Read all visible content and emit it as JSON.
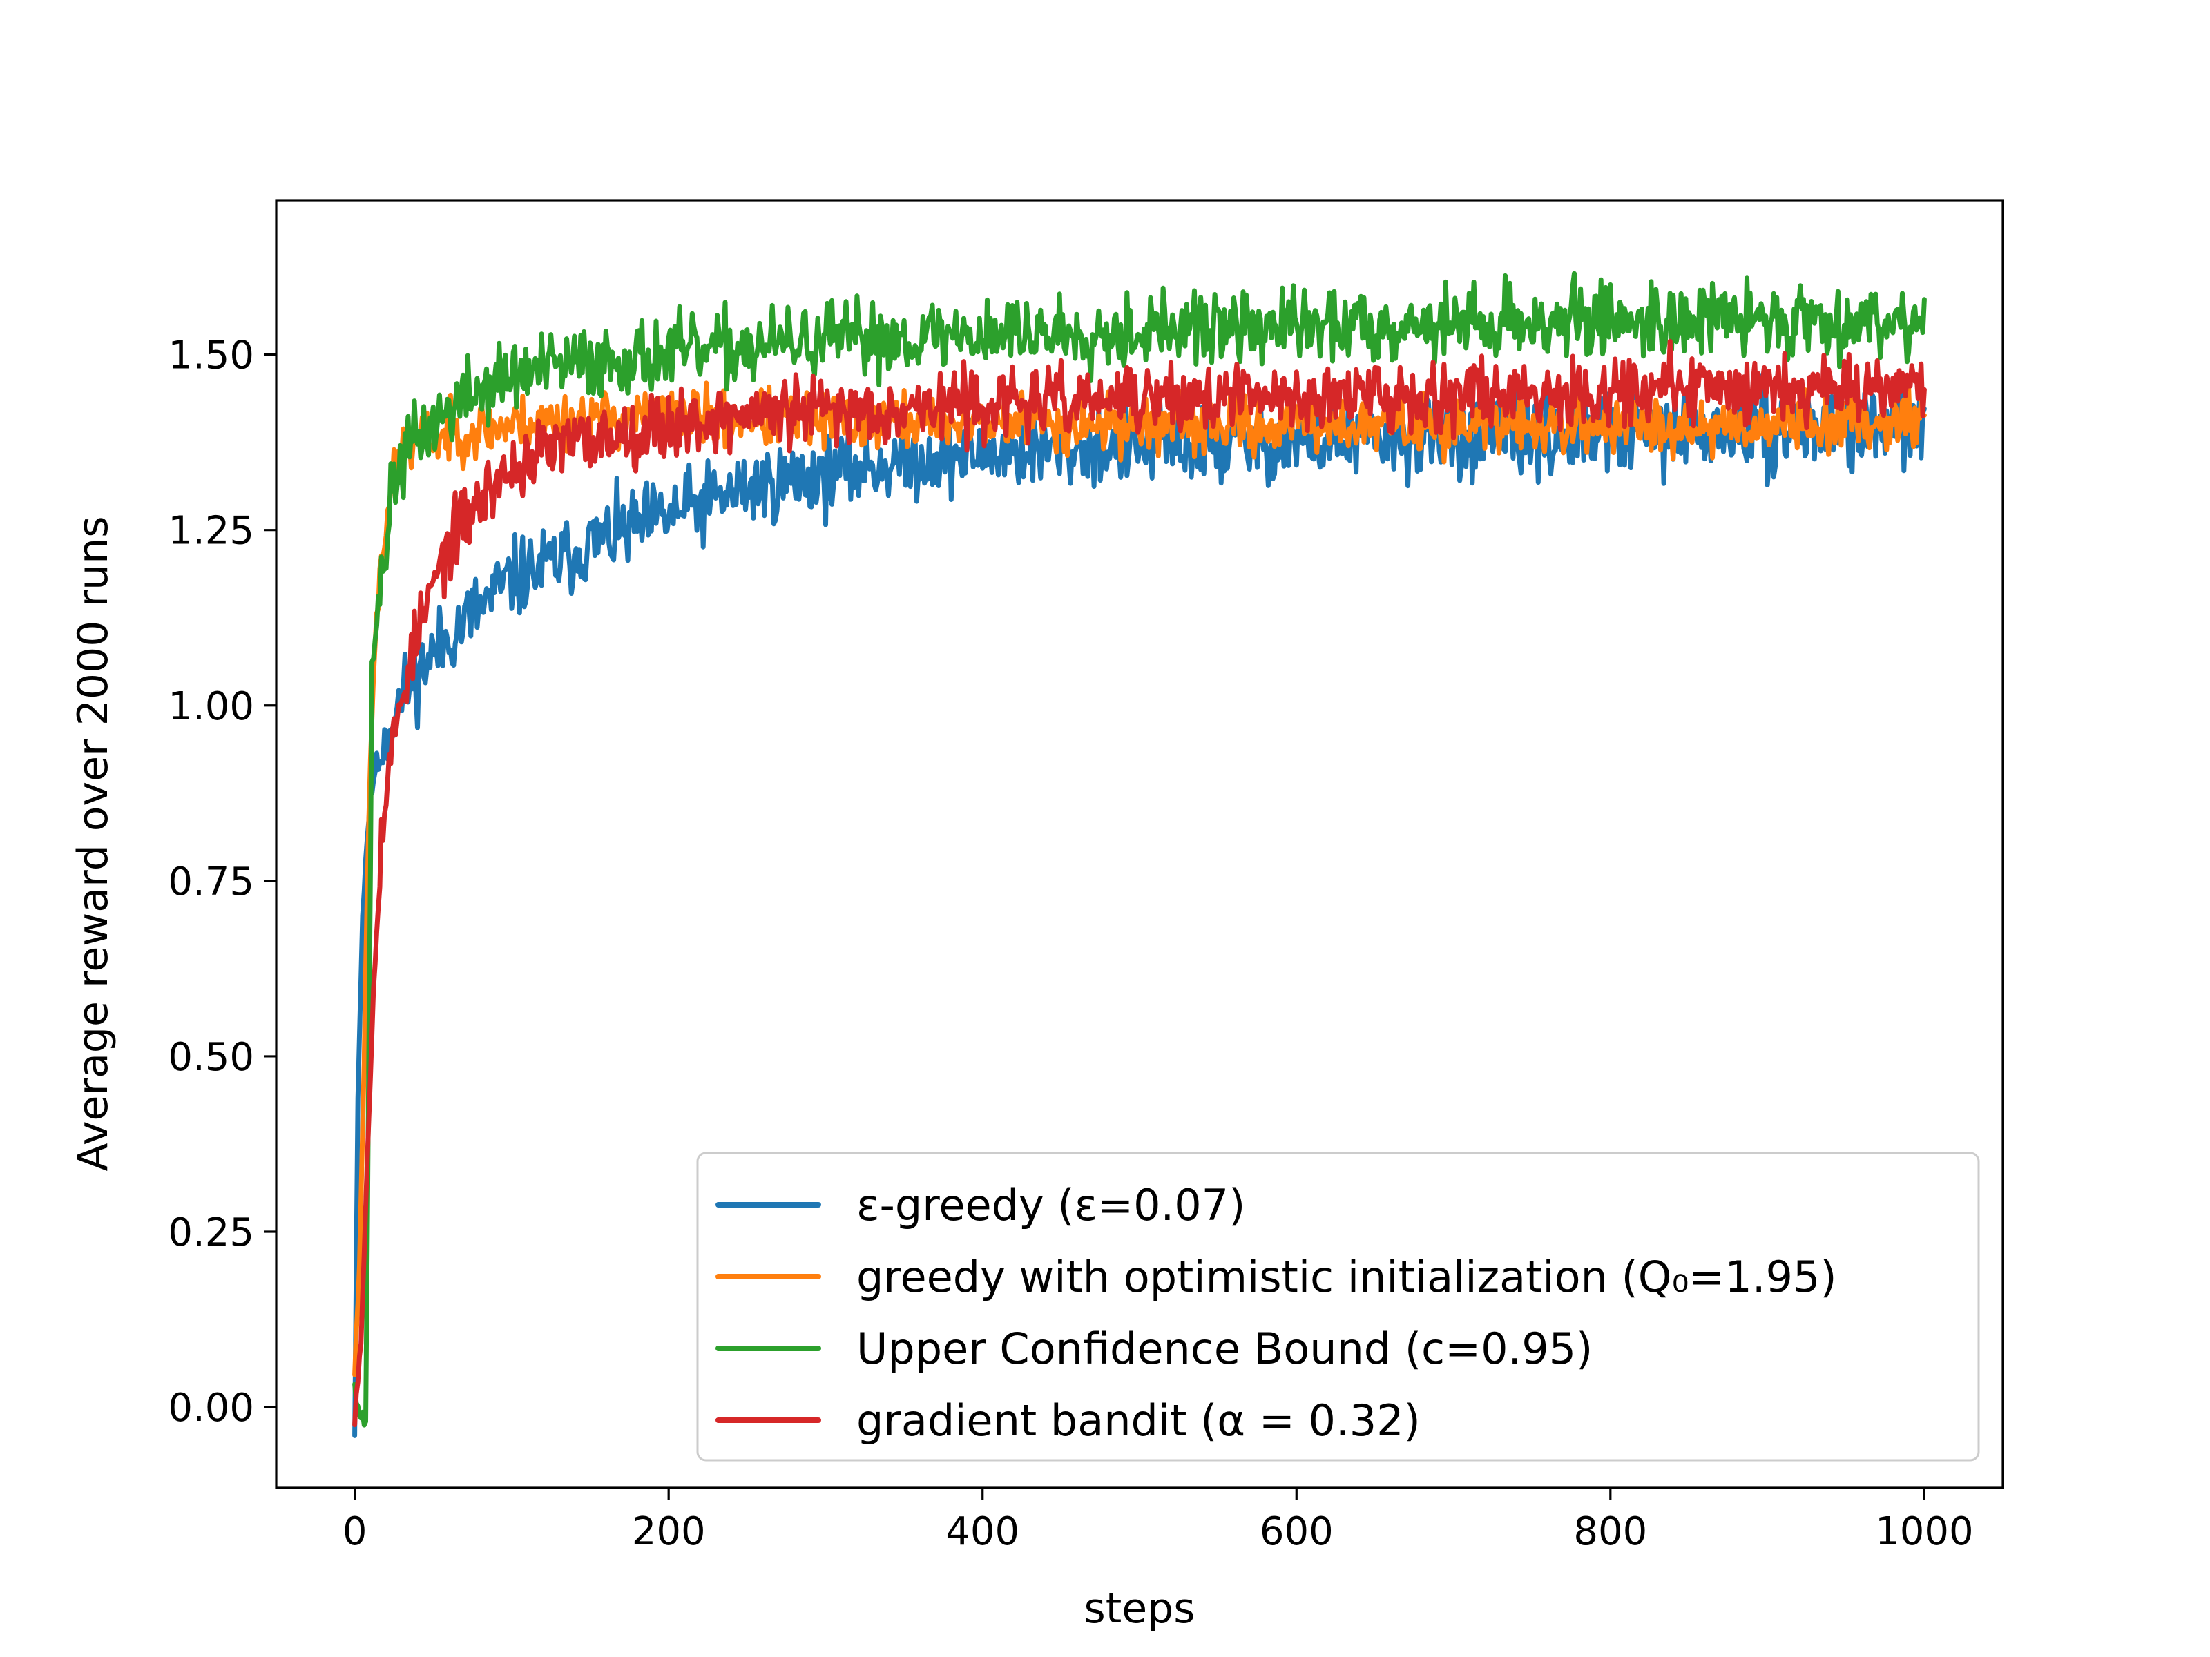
{
  "chart_data": {
    "type": "line",
    "title": "",
    "xlabel": "steps",
    "ylabel": "Average reward over 2000 runs",
    "xlim": [
      -50,
      1050
    ],
    "ylim": [
      -0.115,
      1.72
    ],
    "xticks": [
      0,
      200,
      400,
      600,
      800,
      1000
    ],
    "xtick_labels": [
      "0",
      "200",
      "400",
      "600",
      "800",
      "1000"
    ],
    "yticks": [
      0.0,
      0.25,
      0.5,
      0.75,
      1.0,
      1.25,
      1.5
    ],
    "ytick_labels": [
      "0.00",
      "0.25",
      "0.50",
      "0.75",
      "1.00",
      "1.25",
      "1.50"
    ],
    "grid": false,
    "legend_position": "lower-right",
    "series": [
      {
        "name": "ε-greedy (ε=0.07)",
        "color": "#1f77b4",
        "points": [
          [
            0,
            -0.03
          ],
          [
            2,
            0.45
          ],
          [
            5,
            0.7
          ],
          [
            8,
            0.82
          ],
          [
            12,
            0.9
          ],
          [
            18,
            0.95
          ],
          [
            25,
            0.99
          ],
          [
            35,
            1.03
          ],
          [
            45,
            1.06
          ],
          [
            60,
            1.1
          ],
          [
            80,
            1.14
          ],
          [
            100,
            1.18
          ],
          [
            125,
            1.2
          ],
          [
            150,
            1.23
          ],
          [
            175,
            1.25
          ],
          [
            200,
            1.27
          ],
          [
            225,
            1.29
          ],
          [
            250,
            1.31
          ],
          [
            275,
            1.32
          ],
          [
            300,
            1.33
          ],
          [
            325,
            1.34
          ],
          [
            350,
            1.35
          ],
          [
            375,
            1.355
          ],
          [
            400,
            1.36
          ],
          [
            450,
            1.365
          ],
          [
            500,
            1.37
          ],
          [
            550,
            1.37
          ],
          [
            600,
            1.375
          ],
          [
            650,
            1.38
          ],
          [
            700,
            1.38
          ],
          [
            750,
            1.38
          ],
          [
            800,
            1.385
          ],
          [
            850,
            1.39
          ],
          [
            900,
            1.39
          ],
          [
            950,
            1.395
          ],
          [
            1000,
            1.4
          ]
        ],
        "noise": 0.028,
        "seed": 11
      },
      {
        "name": "greedy with optimistic initialization (Q₀=1.95)",
        "color": "#ff7f0e",
        "points": [
          [
            0,
            0.05
          ],
          [
            3,
            0.2
          ],
          [
            6,
            0.5
          ],
          [
            9,
            0.85
          ],
          [
            12,
            1.05
          ],
          [
            16,
            1.2
          ],
          [
            22,
            1.3
          ],
          [
            30,
            1.36
          ],
          [
            45,
            1.38
          ],
          [
            70,
            1.39
          ],
          [
            100,
            1.4
          ],
          [
            150,
            1.41
          ],
          [
            200,
            1.41
          ],
          [
            250,
            1.41
          ],
          [
            300,
            1.405
          ],
          [
            400,
            1.405
          ],
          [
            500,
            1.4
          ],
          [
            600,
            1.4
          ],
          [
            700,
            1.4
          ],
          [
            800,
            1.4
          ],
          [
            900,
            1.4
          ],
          [
            1000,
            1.41
          ]
        ],
        "noise": 0.02,
        "seed": 23
      },
      {
        "name": "Upper Confidence Bound (c=0.95)",
        "color": "#2ca02c",
        "points": [
          [
            0,
            0.04
          ],
          [
            3,
            -0.01
          ],
          [
            7,
            -0.02
          ],
          [
            9,
            0.5
          ],
          [
            11,
            1.05
          ],
          [
            14,
            1.12
          ],
          [
            18,
            1.2
          ],
          [
            25,
            1.32
          ],
          [
            35,
            1.37
          ],
          [
            50,
            1.4
          ],
          [
            70,
            1.44
          ],
          [
            100,
            1.47
          ],
          [
            150,
            1.49
          ],
          [
            200,
            1.5
          ],
          [
            250,
            1.51
          ],
          [
            300,
            1.52
          ],
          [
            350,
            1.525
          ],
          [
            400,
            1.53
          ],
          [
            500,
            1.535
          ],
          [
            600,
            1.54
          ],
          [
            700,
            1.545
          ],
          [
            800,
            1.55
          ],
          [
            900,
            1.55
          ],
          [
            1000,
            1.55
          ]
        ],
        "noise": 0.026,
        "seed": 37
      },
      {
        "name": "gradient bandit (α = 0.32)",
        "color": "#d62728",
        "points": [
          [
            0,
            -0.01
          ],
          [
            4,
            0.1
          ],
          [
            8,
            0.35
          ],
          [
            12,
            0.6
          ],
          [
            16,
            0.78
          ],
          [
            20,
            0.88
          ],
          [
            25,
            0.95
          ],
          [
            30,
            1.02
          ],
          [
            40,
            1.1
          ],
          [
            50,
            1.17
          ],
          [
            60,
            1.23
          ],
          [
            75,
            1.28
          ],
          [
            90,
            1.32
          ],
          [
            110,
            1.35
          ],
          [
            130,
            1.37
          ],
          [
            150,
            1.38
          ],
          [
            200,
            1.4
          ],
          [
            250,
            1.415
          ],
          [
            300,
            1.42
          ],
          [
            400,
            1.43
          ],
          [
            500,
            1.435
          ],
          [
            600,
            1.44
          ],
          [
            700,
            1.445
          ],
          [
            800,
            1.45
          ],
          [
            900,
            1.455
          ],
          [
            1000,
            1.46
          ]
        ],
        "noise": 0.024,
        "seed": 53
      }
    ]
  }
}
